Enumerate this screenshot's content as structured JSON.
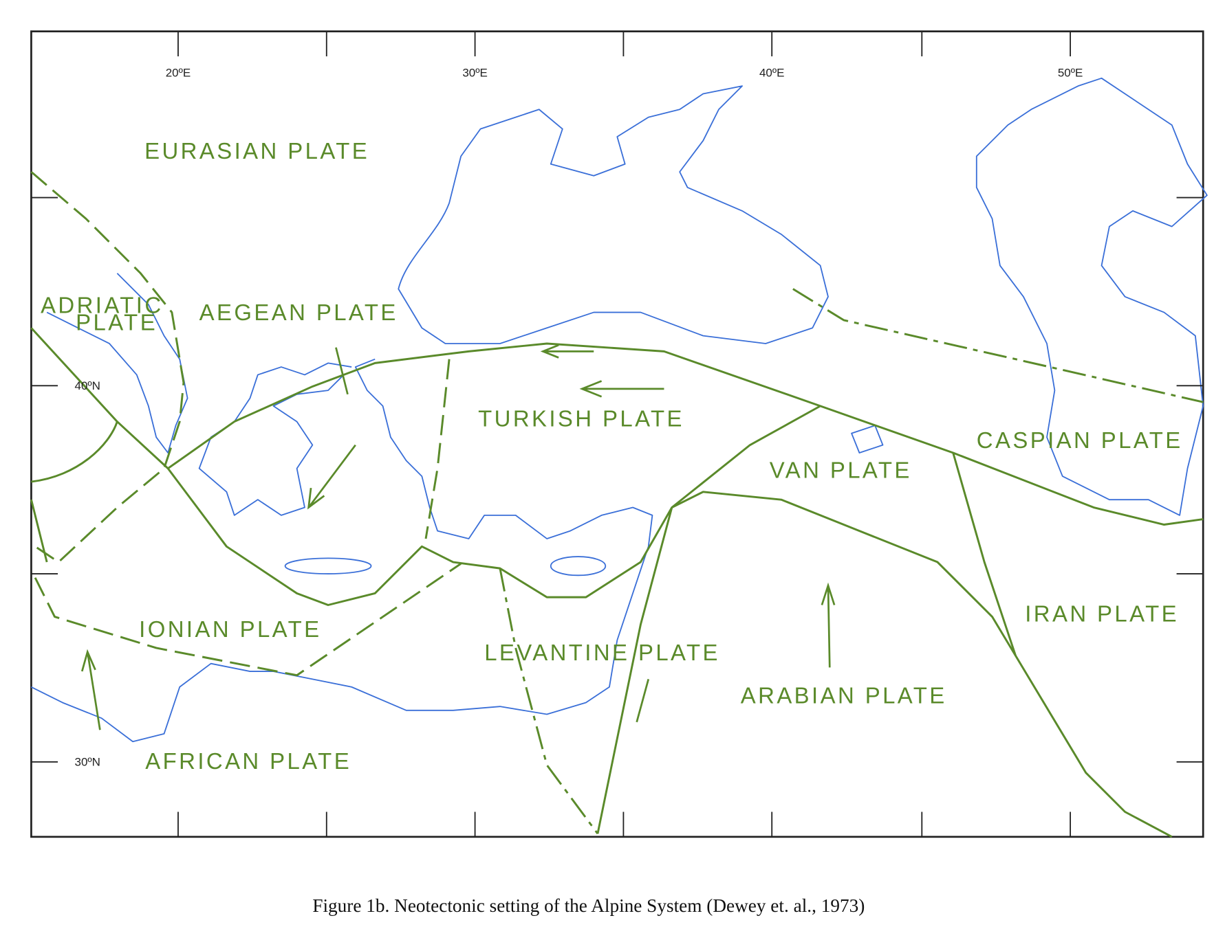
{
  "longitude_labels": [
    "20ºE",
    "30ºE",
    "40ºE",
    "50ºE"
  ],
  "latitude_labels": [
    "40ºN",
    "30ºN"
  ],
  "plates": [
    "EURASIAN PLATE",
    [
      "ADRIATIC",
      "PLATE"
    ],
    "AEGEAN PLATE",
    "TURKISH PLATE",
    "CASPIAN PLATE",
    "VAN PLATE",
    "IONIAN PLATE",
    "LEVANTINE PLATE",
    "IRAN PLATE",
    "ARABIAN PLATE",
    "AFRICAN PLATE"
  ],
  "caption": "Figure 1b.  Neotectonic setting of the Alpine System (Dewey et. al., 1973)"
}
